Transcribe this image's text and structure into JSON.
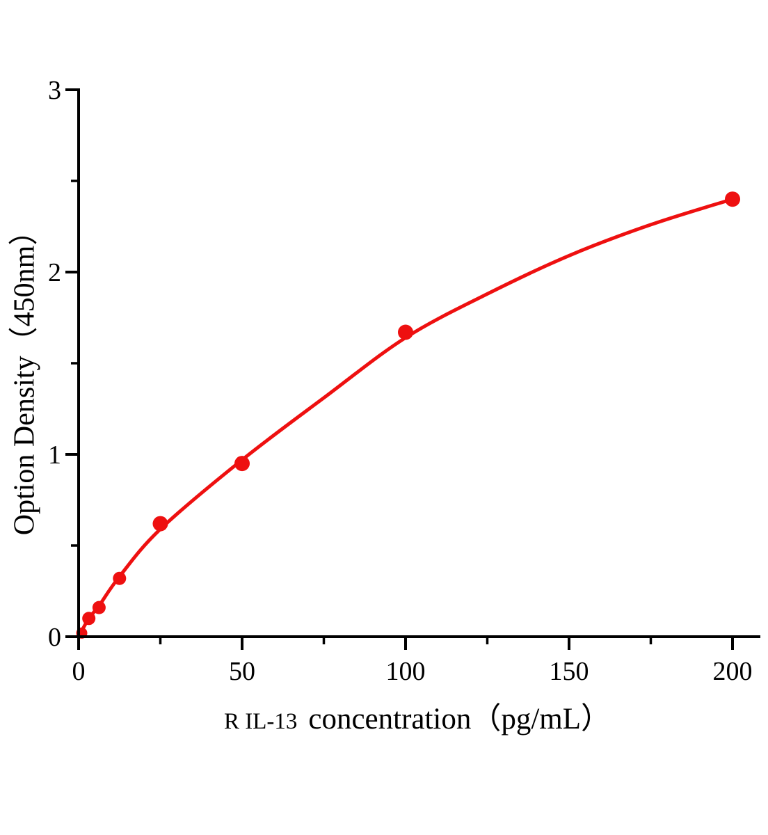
{
  "figure": {
    "background_color": "#ffffff"
  },
  "chart_data": {
    "type": "scatter",
    "title": "",
    "xlabel_prefix": "R IL-13",
    "xlabel_main": "concentration（pg/mL）",
    "ylabel": "Option Density（450nm）",
    "xlim": [
      0,
      208
    ],
    "ylim": [
      0,
      3
    ],
    "x_major_ticks": [
      0,
      50,
      100,
      150,
      200
    ],
    "x_minor_ticks": [
      25,
      75,
      125,
      175
    ],
    "y_major_ticks": [
      0,
      1,
      2,
      3
    ],
    "y_minor_ticks": [
      0.5,
      1.5,
      2.5
    ],
    "grid": false,
    "legend": null,
    "points": [
      {
        "x": 0,
        "od": 0.02
      },
      {
        "x": 3.125,
        "od": 0.1
      },
      {
        "x": 6.25,
        "od": 0.16
      },
      {
        "x": 12.5,
        "od": 0.32
      },
      {
        "x": 25,
        "od": 0.62
      },
      {
        "x": 50,
        "od": 0.95
      },
      {
        "x": 100,
        "od": 1.67
      },
      {
        "x": 200,
        "od": 2.4
      }
    ],
    "fit_curve": [
      {
        "x": 0,
        "od": 0.0
      },
      {
        "x": 3.125,
        "od": 0.1
      },
      {
        "x": 6.25,
        "od": 0.17
      },
      {
        "x": 12.5,
        "od": 0.33
      },
      {
        "x": 25,
        "od": 0.59
      },
      {
        "x": 50,
        "od": 0.97
      },
      {
        "x": 75,
        "od": 1.31
      },
      {
        "x": 100,
        "od": 1.64
      },
      {
        "x": 125,
        "od": 1.88
      },
      {
        "x": 150,
        "od": 2.09
      },
      {
        "x": 175,
        "od": 2.26
      },
      {
        "x": 200,
        "od": 2.4
      }
    ],
    "colors": {
      "curve": "#ee1010",
      "marker": "#ee1010",
      "axis": "#000000",
      "text": "#000000"
    }
  }
}
